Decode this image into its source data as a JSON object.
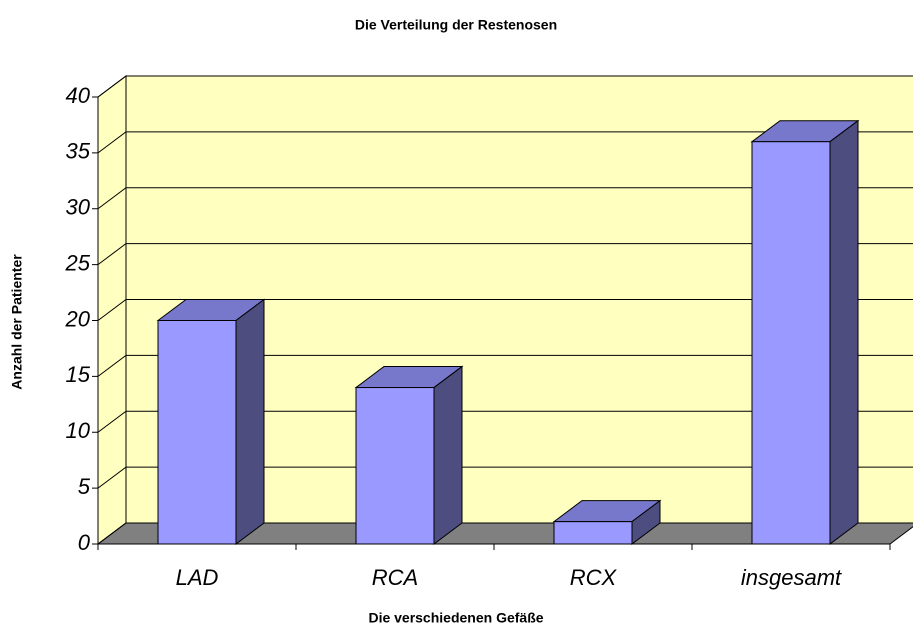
{
  "chart_data": {
    "type": "bar3d",
    "title": "Die Verteilung der Restenosen",
    "x_label": "Die verschiedenen Gefäße",
    "y_label": "Anzahl der Patienter",
    "categories": [
      "LAD",
      "RCA",
      "RCX",
      "insgesamt"
    ],
    "values": [
      20,
      14,
      2,
      36
    ],
    "color": "#9999ff",
    "ylim": [
      0,
      40
    ],
    "yticks": [
      0,
      5,
      10,
      15,
      20,
      25,
      30,
      35,
      40
    ],
    "grid": true
  }
}
